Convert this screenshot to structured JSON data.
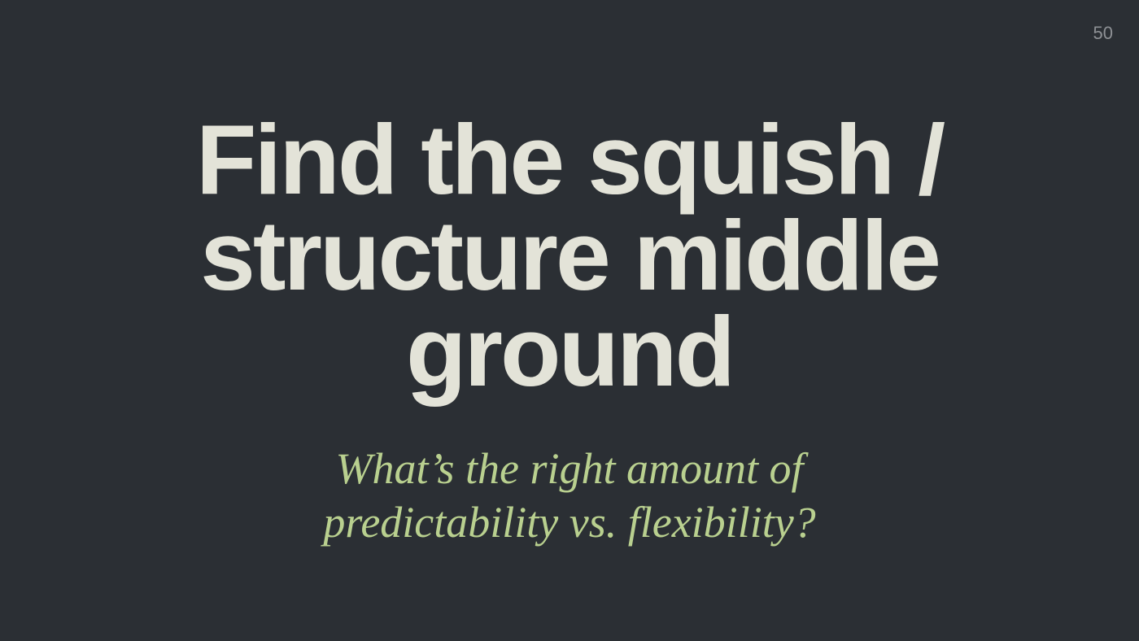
{
  "slide": {
    "page_number": "50",
    "title_lines": [
      "Find the squish /",
      "structure middle",
      "ground"
    ],
    "subtitle_lines": [
      "What’s the right amount of",
      "predictability vs. flexibility?"
    ],
    "colors": {
      "background": "#2b2f34",
      "title": "#e3e3d8",
      "subtitle": "#b9d08f",
      "page_number": "#8e9195"
    }
  }
}
